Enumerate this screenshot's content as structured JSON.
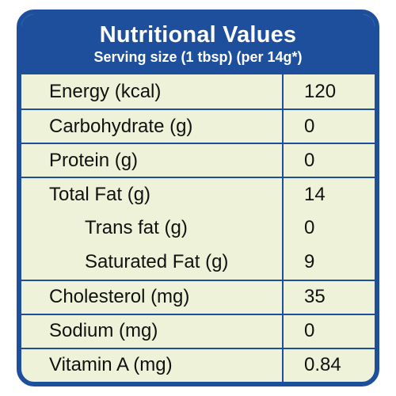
{
  "header": {
    "title": "Nutritional Values",
    "subtitle": "Serving size (1 tbsp) (per 14g*)"
  },
  "colors": {
    "border": "#1e4f9c",
    "background": "#eef2d9",
    "text": "#111111"
  },
  "rows": [
    {
      "label": "Energy (kcal)",
      "value": "120"
    },
    {
      "label": "Carbohydrate (g)",
      "value": "0"
    },
    {
      "label": "Protein (g)",
      "value": "0"
    },
    {
      "label": "Total Fat (g)",
      "value": "14"
    },
    {
      "label": "Trans fat (g)",
      "value": "0"
    },
    {
      "label": "Saturated Fat (g)",
      "value": "9"
    },
    {
      "label": "Cholesterol (mg)",
      "value": "35"
    },
    {
      "label": "Sodium (mg)",
      "value": "0"
    },
    {
      "label": "Vitamin A (mg)",
      "value": "0.84"
    }
  ]
}
